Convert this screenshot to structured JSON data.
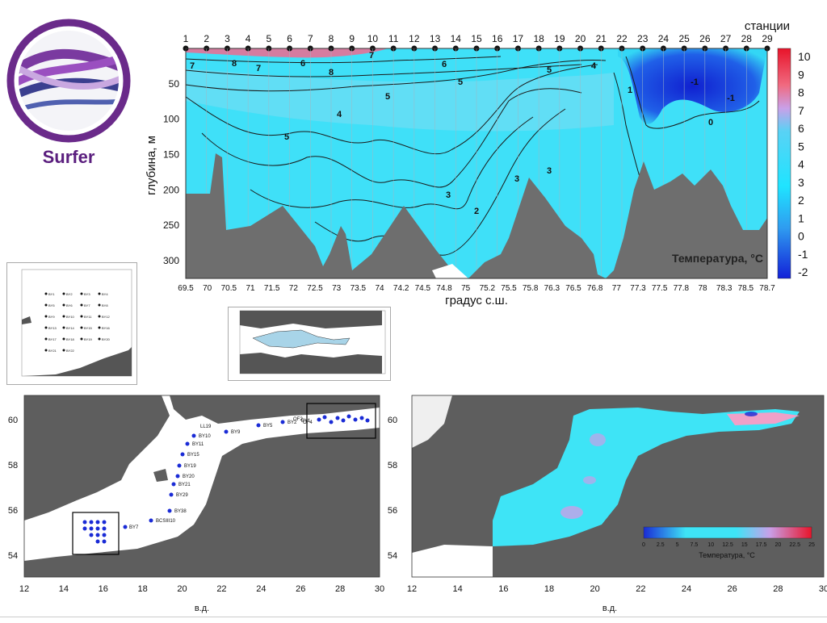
{
  "logo": {
    "label": "Surfer"
  },
  "section": {
    "stations_label": "станции",
    "station_numbers": [
      "1",
      "2",
      "3",
      "4",
      "5",
      "6",
      "7",
      "8",
      "9",
      "10",
      "11",
      "12",
      "13",
      "14",
      "15",
      "16",
      "17",
      "18",
      "19",
      "20",
      "21",
      "22",
      "23",
      "24",
      "25",
      "26",
      "27",
      "28",
      "29"
    ],
    "y_axis_label": "глубина, м",
    "x_axis_label": "градус с.ш.",
    "panel_title": "Температура, °C",
    "colorbar_labels": [
      "10",
      "9",
      "8",
      "7",
      "6",
      "5",
      "4",
      "3",
      "2",
      "1",
      "0",
      "-1",
      "-2"
    ],
    "colors": {
      "land": "#6e6e6e",
      "cold": "#1a2bd6",
      "mid": "#33d6f5",
      "warm": "#f04a70"
    }
  },
  "chart_data": {
    "type": "heatmap",
    "title": "Температура, °C",
    "xlabel": "градус с.ш.",
    "ylabel": "глубина, м",
    "x_ticks": [
      "69.5",
      "70",
      "70.5",
      "71",
      "71.5",
      "72",
      "72.5",
      "73",
      "73.5",
      "74",
      "74.2",
      "74.5",
      "74.8",
      "75",
      "75.2",
      "75.5",
      "75.8",
      "76.3",
      "76.5",
      "76.8",
      "77",
      "77.3",
      "77.5",
      "77.8",
      "78",
      "78.3",
      "78.5",
      "78.7"
    ],
    "y_ticks": [
      50,
      100,
      150,
      200,
      250,
      300
    ],
    "ylim": [
      0,
      325
    ],
    "colorbar": {
      "min": -2,
      "max": 10,
      "ticks": [
        10,
        9,
        8,
        7,
        6,
        5,
        4,
        3,
        2,
        1,
        0,
        -1,
        -2
      ]
    },
    "isotherm_labels": [
      "7",
      "8",
      "7",
      "6",
      "5",
      "4",
      "3",
      "2",
      "1",
      "0",
      "-1"
    ]
  },
  "thumb1": {
    "stations": [
      "BY1",
      "BY2",
      "BY3",
      "BY4",
      "BY5",
      "BY6",
      "BY7",
      "BY8",
      "BY9",
      "BY10",
      "BY11",
      "BY12",
      "BY13",
      "BY14",
      "BY15",
      "BY16",
      "BY17",
      "BY18",
      "BY19",
      "BY20",
      "BY21",
      "BY22"
    ]
  },
  "thumb2": {
    "label": ""
  },
  "map_left": {
    "x_label": "в.д.",
    "x_ticks": [
      "12",
      "14",
      "16",
      "18",
      "20",
      "22",
      "24",
      "26",
      "28",
      "30"
    ],
    "y_ticks_left": [
      "60",
      "58",
      "56",
      "54"
    ],
    "y_ticks_right": [
      "60",
      "58",
      "56",
      "54"
    ],
    "station_labels": [
      "BY7",
      "BCSIII10",
      "BY38",
      "BY29",
      "BY21",
      "BY20",
      "BY19",
      "BY15",
      "BY11",
      "BY10",
      "BY9",
      "BY5",
      "BY2",
      "BY1",
      "LL19",
      "OF2",
      "OF4"
    ]
  },
  "map_right": {
    "x_label": "в.д.",
    "x_ticks": [
      "12",
      "14",
      "16",
      "18",
      "20",
      "22",
      "24",
      "26",
      "28",
      "30"
    ],
    "legend_title": "Температура, °C",
    "legend_ticks": [
      "0",
      "2.5",
      "5",
      "7.5",
      "10",
      "12.5",
      "15",
      "17.5",
      "20",
      "22.5",
      "25"
    ]
  }
}
